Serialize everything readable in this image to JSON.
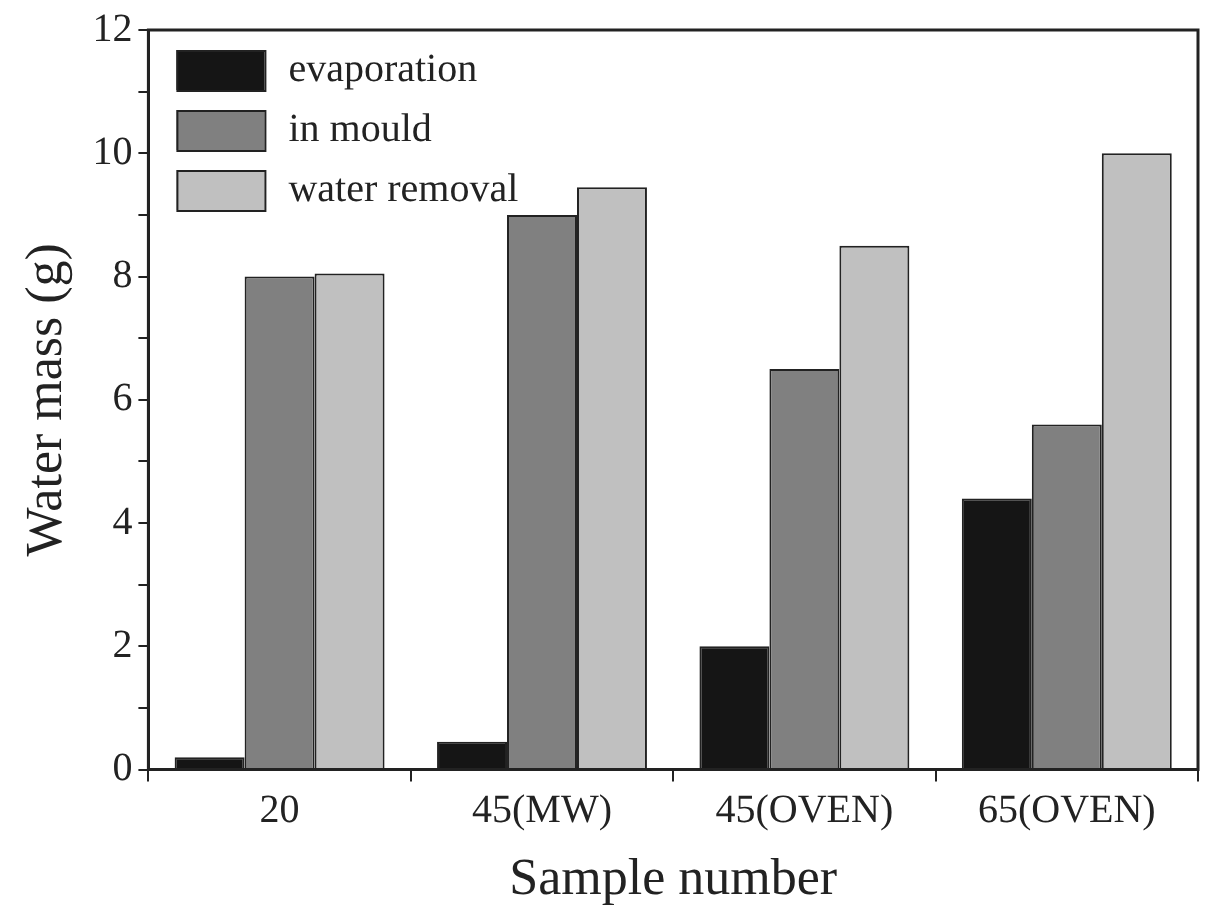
{
  "chart_data": {
    "type": "bar",
    "xlabel": "Sample number",
    "ylabel": "Water mass (g)",
    "categories": [
      "20",
      "45(MW)",
      "45(OVEN)",
      "65(OVEN)"
    ],
    "series": [
      {
        "name": "evaporation",
        "color": "#151515",
        "values": [
          0.2,
          0.45,
          2.0,
          4.4
        ]
      },
      {
        "name": "in mould",
        "color": "#808080",
        "values": [
          8.0,
          9.0,
          6.5,
          5.6
        ]
      },
      {
        "name": "water removal",
        "color": "#c0c0c0",
        "values": [
          8.05,
          9.45,
          8.5,
          10.0
        ]
      }
    ],
    "ylim": [
      0,
      12
    ],
    "yticks": [
      0,
      {
        "value": 1,
        "label": null
      },
      2,
      {
        "value": 3,
        "label": null
      },
      4,
      {
        "value": 5,
        "label": null
      },
      6,
      {
        "value": 7,
        "label": null
      },
      8,
      {
        "value": 9,
        "label": null
      },
      10,
      {
        "value": 11,
        "label": null
      },
      12
    ],
    "grid": false,
    "legend": "top left"
  }
}
